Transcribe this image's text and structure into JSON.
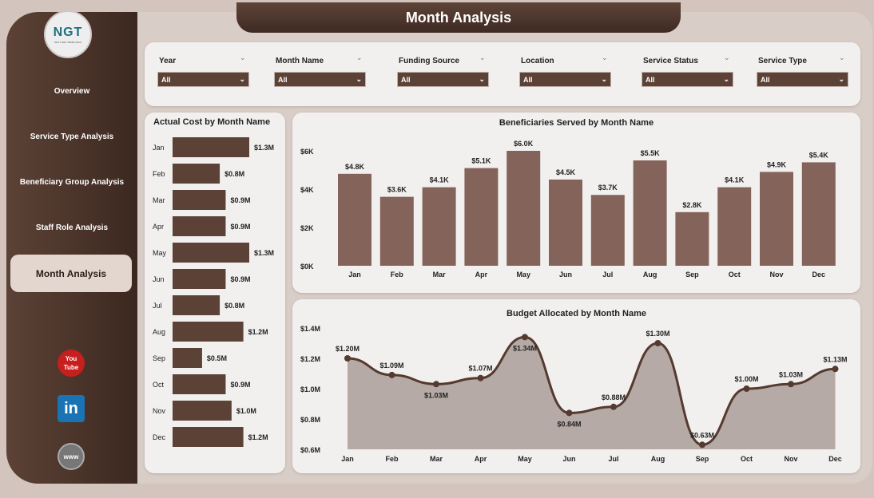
{
  "header": {
    "title": "Month Analysis"
  },
  "logo": {
    "text": "NGT",
    "subtext": "NEXT GEN TEMPLATES"
  },
  "sidebar": {
    "items": [
      {
        "label": "Overview"
      },
      {
        "label": "Service Type Analysis"
      },
      {
        "label": "Beneficiary Group Analysis"
      },
      {
        "label": "Staff Role Analysis"
      },
      {
        "label": "Month Analysis",
        "active": true
      }
    ],
    "social": [
      {
        "icon": "youtube-icon",
        "label": "You Tube"
      },
      {
        "icon": "linkedin-icon",
        "label": "in"
      },
      {
        "icon": "globe-icon",
        "label": "www"
      }
    ]
  },
  "filters": [
    {
      "label": "Year",
      "value": "All"
    },
    {
      "label": "Month Name",
      "value": "All"
    },
    {
      "label": "Funding Source",
      "value": "All"
    },
    {
      "label": "Location",
      "value": "All"
    },
    {
      "label": "Service Status",
      "value": "All"
    },
    {
      "label": "Service Type",
      "value": "All"
    }
  ],
  "colors": {
    "accent": "#5c4236",
    "bar": "#84645a",
    "area": "#b5aaa5"
  },
  "chart_data": [
    {
      "type": "bar",
      "orientation": "horizontal",
      "title": "Actual Cost by Month Name",
      "categories": [
        "Jan",
        "Feb",
        "Mar",
        "Apr",
        "May",
        "Jun",
        "Jul",
        "Aug",
        "Sep",
        "Oct",
        "Nov",
        "Dec"
      ],
      "values": [
        1.3,
        0.8,
        0.9,
        0.9,
        1.3,
        0.9,
        0.8,
        1.2,
        0.5,
        0.9,
        1.0,
        1.2
      ],
      "labels": [
        "$1.3M",
        "$0.8M",
        "$0.9M",
        "$0.9M",
        "$1.3M",
        "$0.9M",
        "$0.8M",
        "$1.2M",
        "$0.5M",
        "$0.9M",
        "$1.0M",
        "$1.2M"
      ]
    },
    {
      "type": "bar",
      "title": "Beneficiaries Served by Month Name",
      "categories": [
        "Jan",
        "Feb",
        "Mar",
        "Apr",
        "May",
        "Jun",
        "Jul",
        "Aug",
        "Sep",
        "Oct",
        "Nov",
        "Dec"
      ],
      "values": [
        4.8,
        3.6,
        4.1,
        5.1,
        6.0,
        4.5,
        3.7,
        5.5,
        2.8,
        4.1,
        4.9,
        5.4
      ],
      "labels": [
        "$4.8K",
        "$3.6K",
        "$4.1K",
        "$5.1K",
        "$6.0K",
        "$4.5K",
        "$3.7K",
        "$5.5K",
        "$2.8K",
        "$4.1K",
        "$4.9K",
        "$5.4K"
      ],
      "yticks": [
        "$0K",
        "$2K",
        "$4K",
        "$6K"
      ],
      "ylim": [
        0,
        6
      ]
    },
    {
      "type": "area",
      "title": "Budget Allocated by Month Name",
      "categories": [
        "Jan",
        "Feb",
        "Mar",
        "Apr",
        "May",
        "Jun",
        "Jul",
        "Aug",
        "Sep",
        "Oct",
        "Nov",
        "Dec"
      ],
      "values": [
        1.2,
        1.09,
        1.03,
        1.07,
        1.34,
        0.84,
        0.88,
        1.3,
        0.63,
        1.0,
        1.03,
        1.13
      ],
      "labels": [
        "$1.20M",
        "$1.09M",
        "$1.03M",
        "$1.07M",
        "$1.34M",
        "$0.84M",
        "$0.88M",
        "$1.30M",
        "$0.63M",
        "$1.00M",
        "$1.03M",
        "$1.13M"
      ],
      "yticks": [
        "$0.6M",
        "$0.8M",
        "$1.0M",
        "$1.2M",
        "$1.4M"
      ],
      "ylim": [
        0.6,
        1.4
      ]
    }
  ]
}
